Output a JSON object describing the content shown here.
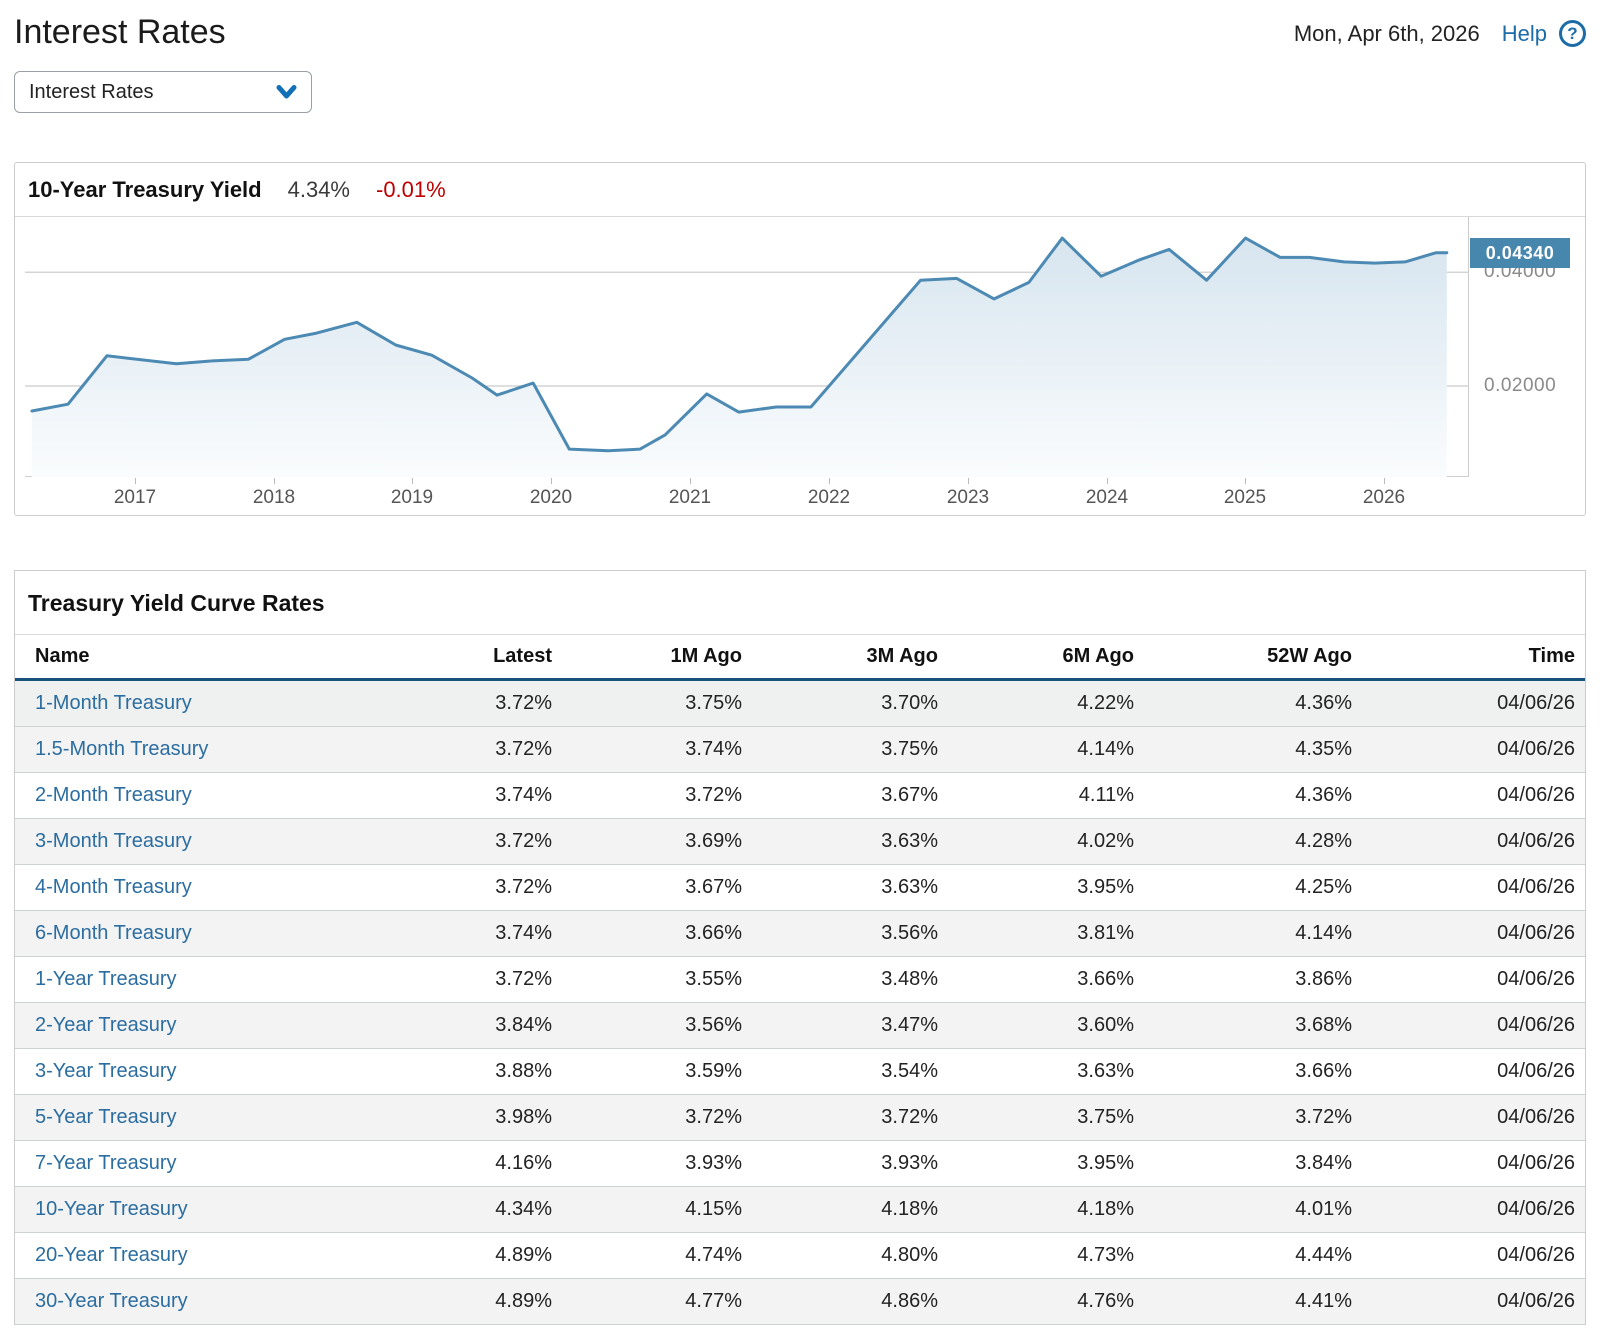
{
  "header": {
    "title": "Interest Rates",
    "date": "Mon, Apr 6th, 2026",
    "help_label": "Help",
    "help_icon_glyph": "?"
  },
  "selector": {
    "value": "Interest Rates"
  },
  "chart_panel": {
    "title": "10-Year Treasury Yield",
    "value": "4.34%",
    "change": "-0.01%",
    "change_color": "#c00000",
    "badge_label": "0.04340",
    "badge_color": "#4786ad",
    "line_color": "#4d8ab3"
  },
  "chart_data": {
    "type": "area",
    "title": "10-Year Treasury Yield",
    "x": [
      2016.26,
      2016.52,
      2016.8,
      2017.3,
      2017.56,
      2017.82,
      2018.08,
      2018.31,
      2018.6,
      2018.88,
      2019.14,
      2019.43,
      2019.61,
      2019.87,
      2020.13,
      2020.41,
      2020.64,
      2020.82,
      2021.12,
      2021.35,
      2021.62,
      2021.87,
      2022.66,
      2022.92,
      2023.19,
      2023.44,
      2023.68,
      2023.96,
      2024.23,
      2024.45,
      2024.72,
      2025.0,
      2025.25,
      2025.46,
      2025.71,
      2025.93,
      2026.15,
      2026.37,
      2026.45
    ],
    "values": [
      0.0156,
      0.0168,
      0.0253,
      0.0239,
      0.0244,
      0.0247,
      0.0282,
      0.0293,
      0.0312,
      0.0272,
      0.0254,
      0.0214,
      0.0184,
      0.0205,
      0.0089,
      0.0086,
      0.0089,
      0.0114,
      0.0186,
      0.0154,
      0.0163,
      0.0163,
      0.0386,
      0.0389,
      0.0353,
      0.0382,
      0.046,
      0.0393,
      0.0421,
      0.044,
      0.0386,
      0.046,
      0.0426,
      0.0426,
      0.0418,
      0.0416,
      0.0418,
      0.0434,
      0.0434
    ],
    "xlabel": "",
    "ylabel": "",
    "xlim": [
      2016.21,
      2026.61
    ],
    "ylim": [
      0.004,
      0.0497
    ],
    "xticks": [
      2017,
      2018,
      2019,
      2020,
      2021,
      2022,
      2023,
      2024,
      2025,
      2026
    ],
    "yticks": [
      0.02,
      0.04
    ],
    "ytick_labels": [
      "0.02000",
      "0.04000"
    ],
    "last_value_label": "0.04340",
    "grid": "horizontal",
    "legend": "none"
  },
  "table": {
    "title": "Treasury Yield Curve Rates",
    "columns": [
      "Name",
      "Latest",
      "1M Ago",
      "3M Ago",
      "6M Ago",
      "52W Ago",
      "Time"
    ],
    "rows": [
      [
        "1-Month Treasury",
        "3.72%",
        "3.75%",
        "3.70%",
        "4.22%",
        "4.36%",
        "04/06/26"
      ],
      [
        "1.5-Month Treasury",
        "3.72%",
        "3.74%",
        "3.75%",
        "4.14%",
        "4.35%",
        "04/06/26"
      ],
      [
        "2-Month Treasury",
        "3.74%",
        "3.72%",
        "3.67%",
        "4.11%",
        "4.36%",
        "04/06/26"
      ],
      [
        "3-Month Treasury",
        "3.72%",
        "3.69%",
        "3.63%",
        "4.02%",
        "4.28%",
        "04/06/26"
      ],
      [
        "4-Month Treasury",
        "3.72%",
        "3.67%",
        "3.63%",
        "3.95%",
        "4.25%",
        "04/06/26"
      ],
      [
        "6-Month Treasury",
        "3.74%",
        "3.66%",
        "3.56%",
        "3.81%",
        "4.14%",
        "04/06/26"
      ],
      [
        "1-Year Treasury",
        "3.72%",
        "3.55%",
        "3.48%",
        "3.66%",
        "3.86%",
        "04/06/26"
      ],
      [
        "2-Year Treasury",
        "3.84%",
        "3.56%",
        "3.47%",
        "3.60%",
        "3.68%",
        "04/06/26"
      ],
      [
        "3-Year Treasury",
        "3.88%",
        "3.59%",
        "3.54%",
        "3.63%",
        "3.66%",
        "04/06/26"
      ],
      [
        "5-Year Treasury",
        "3.98%",
        "3.72%",
        "3.72%",
        "3.75%",
        "3.72%",
        "04/06/26"
      ],
      [
        "7-Year Treasury",
        "4.16%",
        "3.93%",
        "3.93%",
        "3.95%",
        "3.84%",
        "04/06/26"
      ],
      [
        "10-Year Treasury",
        "4.34%",
        "4.15%",
        "4.18%",
        "4.18%",
        "4.01%",
        "04/06/26"
      ],
      [
        "20-Year Treasury",
        "4.89%",
        "4.74%",
        "4.80%",
        "4.73%",
        "4.44%",
        "04/06/26"
      ],
      [
        "30-Year Treasury",
        "4.89%",
        "4.77%",
        "4.86%",
        "4.76%",
        "4.41%",
        "04/06/26"
      ]
    ]
  }
}
